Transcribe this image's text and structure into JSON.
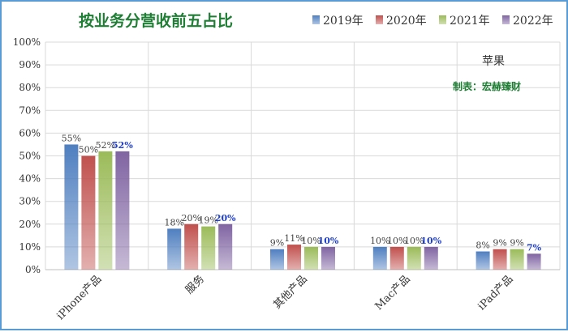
{
  "chart_data": {
    "type": "bar",
    "title": "按业务分营收前五占比",
    "categories": [
      "iPhone产品",
      "服务",
      "其他产品",
      "Mac产品",
      "iPad产品"
    ],
    "series": [
      {
        "name": "2019年",
        "color": "#4f7fc0",
        "values": [
          55,
          18,
          9,
          10,
          8
        ],
        "labels": [
          "55%",
          "18%",
          "9%",
          "10%",
          "8%"
        ]
      },
      {
        "name": "2020年",
        "color": "#c0504d",
        "values": [
          50,
          20,
          11,
          10,
          9
        ],
        "labels": [
          "50%",
          "20%",
          "11%",
          "10%",
          "9%"
        ]
      },
      {
        "name": "2021年",
        "color": "#9bbb59",
        "values": [
          52,
          19,
          10,
          10,
          9
        ],
        "labels": [
          "52%",
          "19%",
          "10%",
          "10%",
          "9%"
        ]
      },
      {
        "name": "2022年",
        "color": "#8064a2",
        "values": [
          52,
          20,
          10,
          10,
          7
        ],
        "labels": [
          "52%",
          "20%",
          "10%",
          "10%",
          "7%"
        ]
      }
    ],
    "ylim": [
      0,
      100
    ],
    "yticks": [
      "0%",
      "10%",
      "20%",
      "30%",
      "40%",
      "50%",
      "60%",
      "70%",
      "80%",
      "90%",
      "100%"
    ],
    "legend_position": "top",
    "grid": true
  },
  "annotations": {
    "company": "苹果",
    "credit": "制表：宏赫臻财"
  }
}
